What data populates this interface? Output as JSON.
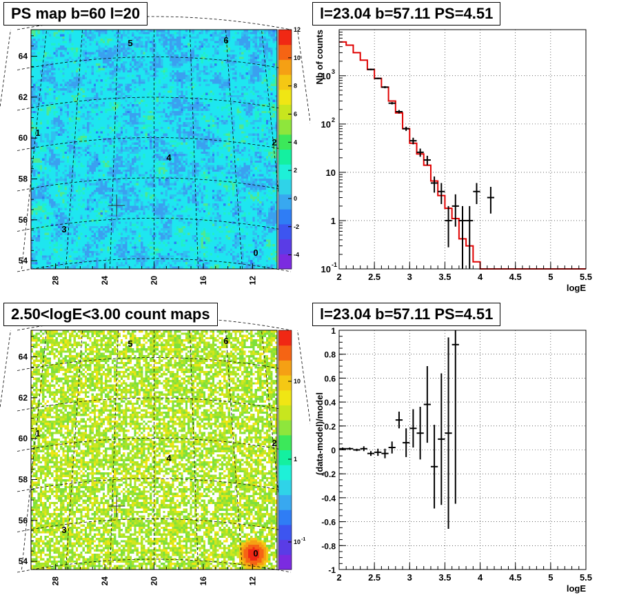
{
  "colors": {
    "frame": "#000000",
    "model_line": "#e00000",
    "data_points": "#000000",
    "grid": "#000000",
    "palette": [
      "#7b2be0",
      "#5a3ce6",
      "#3d55f0",
      "#2f7df5",
      "#38a8f0",
      "#2fd3e8",
      "#1ef0d8",
      "#14f0a0",
      "#3ce85a",
      "#8ee63c",
      "#c8e61e",
      "#f0e614",
      "#f5c814",
      "#f5a014",
      "#f56414",
      "#f02814"
    ]
  },
  "top_left": {
    "title": "PS map b=60 l=20",
    "x_ticks": [
      "28",
      "24",
      "20",
      "16",
      "12"
    ],
    "y_ticks": [
      "54",
      "56",
      "58",
      "60",
      "62",
      "64"
    ],
    "colorbar_ticks": [
      "-4",
      "-2",
      "0",
      "2",
      "4",
      "6",
      "8",
      "10",
      "12"
    ],
    "region_labels": [
      "5",
      "6",
      "1",
      "2",
      "4",
      "3",
      "0"
    ]
  },
  "bottom_left": {
    "title": "2.50<logE<3.00 count maps",
    "x_ticks": [
      "28",
      "24",
      "20",
      "16",
      "12"
    ],
    "y_ticks": [
      "54",
      "56",
      "58",
      "60",
      "62",
      "64"
    ],
    "colorbar_ticks": [
      "10",
      "1",
      "10"
    ],
    "colorbar_tick_exp": "-1",
    "region_labels": [
      "5",
      "6",
      "1",
      "2",
      "4",
      "3",
      "0"
    ]
  },
  "top_right": {
    "title": "l=23.04 b=57.11 PS=4.51",
    "ylabel": "Nb of counts",
    "xlabel": "logE",
    "x_ticks": [
      "2",
      "2.5",
      "3",
      "3.5",
      "4",
      "4.5",
      "5",
      "5.5"
    ],
    "y_tick_base": "10",
    "y_tick_labels": [
      "1",
      "10"
    ],
    "y_tick_exps": [
      "-1",
      "2",
      "3"
    ]
  },
  "bottom_right": {
    "title": "l=23.04 b=57.11 PS=4.51",
    "ylabel": "(data-model)/model",
    "xlabel": "logE",
    "x_ticks": [
      "2",
      "2.5",
      "3",
      "3.5",
      "4",
      "4.5",
      "5",
      "5.5"
    ],
    "y_ticks": [
      "-1",
      "-0.8",
      "-0.6",
      "-0.4",
      "-0.2",
      "0",
      "0.2",
      "0.4",
      "0.6",
      "0.8",
      "1"
    ]
  },
  "chart_data": [
    {
      "type": "heatmap",
      "title": "PS map b=60 l=20",
      "xlim": [
        30,
        10
      ],
      "ylim": [
        53.6,
        65.3
      ],
      "colorbar_range": [
        -5,
        12
      ],
      "source_marker": {
        "l": 23.04,
        "b": 56.7
      }
    },
    {
      "type": "heatmap",
      "title": "2.50<logE<3.00 count maps",
      "xlim": [
        30,
        10
      ],
      "ylim": [
        53.6,
        65.3
      ],
      "colorbar_scale": "log",
      "hotspot": {
        "l": 12,
        "b": 54.4
      }
    },
    {
      "type": "line",
      "title": "l=23.04 b=57.11 PS=4.51",
      "xlabel": "logE",
      "ylabel": "Nb of counts",
      "yscale": "log",
      "xlim": [
        2,
        5.5
      ],
      "ylim": [
        0.1,
        9000
      ],
      "series": [
        {
          "name": "",
          "kind": "step",
          "bin_edges": [
            2.0,
            2.1,
            2.2,
            2.3,
            2.4,
            2.5,
            2.6,
            2.7,
            2.8,
            2.9,
            3.0,
            3.1,
            3.2,
            3.3,
            3.4,
            3.5,
            3.6,
            3.7,
            3.8,
            3.9,
            4.0,
            4.1,
            4.2,
            4.3,
            4.4,
            4.5,
            4.6,
            4.7,
            4.8,
            4.9,
            5.0,
            5.1,
            5.2,
            5.3,
            5.4,
            5.5
          ],
          "values": [
            5000,
            4300,
            3000,
            2100,
            1350,
            880,
            580,
            300,
            170,
            80,
            40,
            24,
            14,
            6.6,
            3.3,
            1.8,
            1.1,
            0.42,
            0.3,
            0.14,
            0.1,
            0.1,
            0.1,
            0.1,
            0.1,
            0.1,
            0.1,
            0.1,
            0.1,
            0.1,
            0.1,
            0.1,
            0.1,
            0.1,
            0.1
          ]
        },
        {
          "name": "",
          "kind": "points",
          "x": [
            2.45,
            2.55,
            2.65,
            2.75,
            2.85,
            2.95,
            3.05,
            3.15,
            3.25,
            3.35,
            3.45,
            3.55,
            3.65,
            3.75,
            3.85,
            3.95,
            4.15
          ],
          "y": [
            1350,
            880,
            580,
            270,
            180,
            80,
            45,
            26,
            18,
            6,
            4,
            1,
            2,
            1,
            1,
            4,
            3
          ],
          "y_low": [
            1300,
            850,
            550,
            255,
            165,
            72,
            38,
            21,
            14,
            3.8,
            2.2,
            0.28,
            0.75,
            0.1,
            0.1,
            2.2,
            1.4
          ],
          "y_high": [
            1400,
            910,
            610,
            285,
            195,
            88,
            52,
            31,
            22,
            8.2,
            6,
            2,
            3.5,
            2,
            2,
            6,
            5
          ]
        }
      ]
    },
    {
      "type": "scatter",
      "title": "l=23.04 b=57.11 PS=4.51",
      "xlabel": "logE",
      "ylabel": "(data-model)/model",
      "xlim": [
        2,
        5.5
      ],
      "ylim": [
        -1,
        1
      ],
      "series": [
        {
          "name": "",
          "x": [
            2.05,
            2.15,
            2.25,
            2.35,
            2.45,
            2.55,
            2.65,
            2.75,
            2.85,
            2.95,
            3.05,
            3.15,
            3.25,
            3.35,
            3.45,
            3.55,
            3.65
          ],
          "y": [
            0.01,
            0.01,
            0.0,
            0.01,
            -0.03,
            -0.02,
            -0.03,
            0.02,
            0.25,
            0.06,
            0.18,
            0.14,
            0.38,
            -0.14,
            0.09,
            0.14,
            0.88
          ],
          "y_err": [
            0.01,
            0.01,
            0.01,
            0.02,
            0.02,
            0.03,
            0.04,
            0.05,
            0.07,
            0.12,
            0.16,
            0.22,
            0.32,
            0.35,
            0.55,
            0.8,
            1.33
          ]
        }
      ]
    }
  ]
}
